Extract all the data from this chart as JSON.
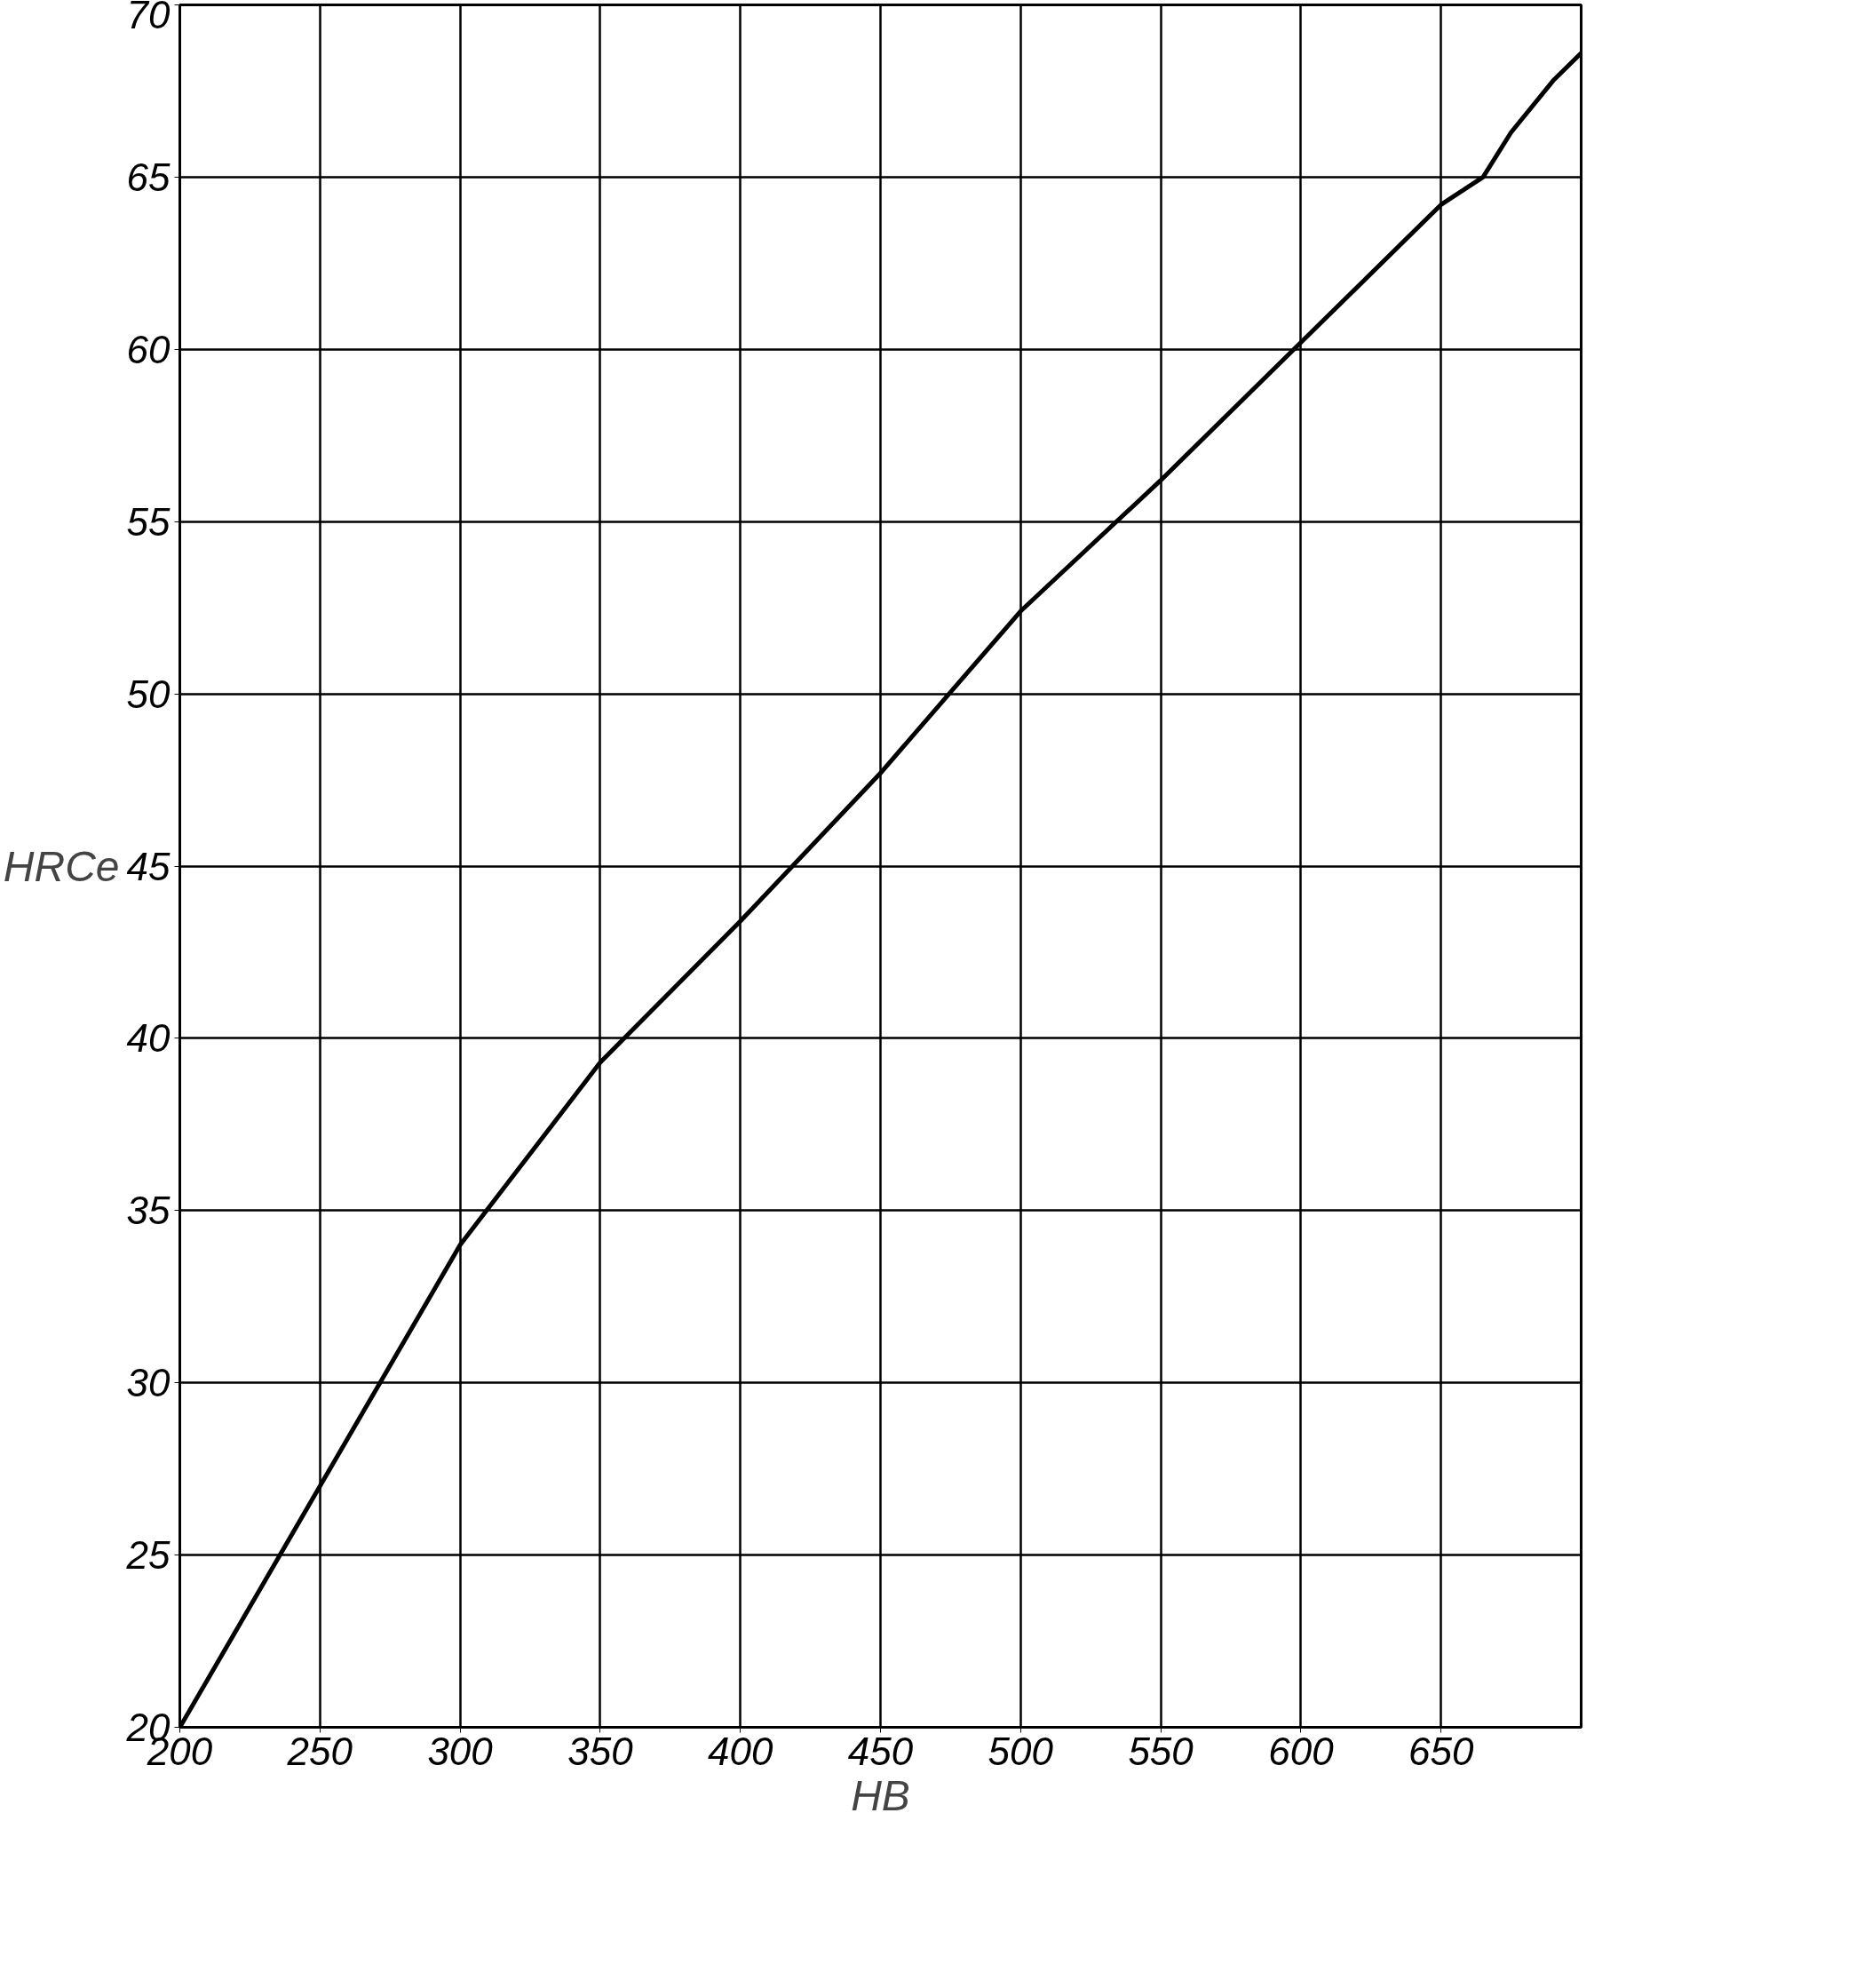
{
  "chart_data": {
    "type": "line",
    "xlabel": "HB",
    "ylabel": "HRCe",
    "x": [
      200,
      250,
      300,
      350,
      400,
      450,
      500,
      550,
      600,
      650,
      665,
      675,
      690,
      700
    ],
    "series": [
      {
        "color": "#000000",
        "values": [
          20,
          27,
          34,
          39.3,
          43.4,
          47.7,
          52.4,
          56.2,
          60.2,
          64.2,
          65,
          66.3,
          67.8,
          68.6
        ]
      }
    ],
    "xlim": [
      200,
      700
    ],
    "xticks": [
      200,
      250,
      300,
      350,
      400,
      450,
      500,
      550,
      600,
      650
    ],
    "ylim": [
      20,
      70
    ],
    "yticks": [
      20,
      25,
      30,
      35,
      40,
      45,
      50,
      55,
      60,
      65,
      70
    ],
    "grid": true,
    "marker": "none",
    "line_style": "solid"
  }
}
